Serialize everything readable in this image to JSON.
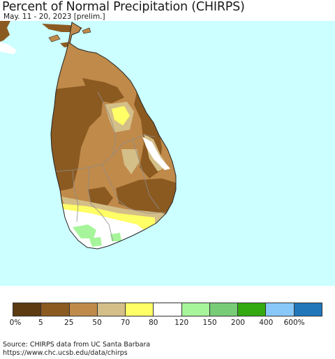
{
  "header": {
    "title": "Percent of Normal Precipitation (CHIRPS)",
    "subtitle": "May. 11 - 20, 2023 [prelim.]"
  },
  "map": {
    "region": "Sri Lanka",
    "ocean_color": "#ccffff",
    "boundary_color": "#8c8c8c"
  },
  "legend": {
    "categories": [
      {
        "range": "0-5%",
        "color": "#5c3b12"
      },
      {
        "range": "5-25%",
        "color": "#8b5a21"
      },
      {
        "range": "25-50%",
        "color": "#c08a4a"
      },
      {
        "range": "50-70%",
        "color": "#d4bf88"
      },
      {
        "range": "70-80%",
        "color": "#ffff66"
      },
      {
        "range": "80-120%",
        "color": "#ffffff"
      },
      {
        "range": "120-150%",
        "color": "#a6f59a"
      },
      {
        "range": "150-200%",
        "color": "#78cc78"
      },
      {
        "range": "200-400%",
        "color": "#33aa11"
      },
      {
        "range": "400-600%",
        "color": "#88c8f8"
      },
      {
        "range": ">600%",
        "color": "#2277bb"
      }
    ],
    "tick_labels": [
      "0%",
      "5",
      "25",
      "50",
      "70",
      "80",
      "120",
      "150",
      "200",
      "400",
      "600%"
    ]
  },
  "footer": {
    "source": "Source: CHIRPS data from UC Santa Barbara",
    "url": "https://www.chc.ucsb.edu/data/chirps"
  }
}
